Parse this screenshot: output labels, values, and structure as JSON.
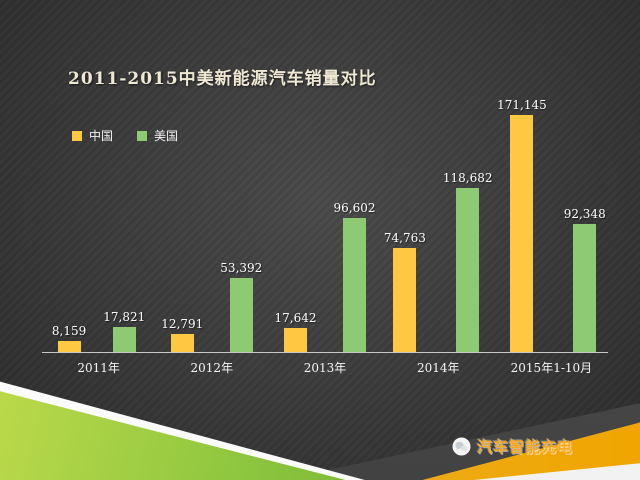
{
  "slide": {
    "title": "2011-2015中美新能源汽车销量对比",
    "watermark": {
      "text": "汽车智能充电",
      "icon": "wechat-icon"
    }
  },
  "chart_data": {
    "type": "bar",
    "title": "2011-2015中美新能源汽车销量对比",
    "categories": [
      "2011年",
      "2012年",
      "2013年",
      "2014年",
      "2015年1-10月"
    ],
    "series": [
      {
        "name": "中国",
        "color": "#FEC843",
        "values": [
          8159,
          12791,
          17642,
          74763,
          171145
        ]
      },
      {
        "name": "美国",
        "color": "#8EC973",
        "values": [
          17821,
          53392,
          96602,
          118682,
          92348
        ]
      }
    ],
    "ylim": [
      0,
      180000
    ],
    "legend_position": "top-left",
    "grid": false,
    "axis_color": "#c8c8c8",
    "label_color": "#ffffff"
  },
  "colors": {
    "background": "#3b3b3b",
    "title_text": "#efe8d4",
    "ribbon_green": "#8DC63F",
    "ribbon_orange": "#F0A500",
    "ribbon_white": "#FBFBFB",
    "watermark_orange": "#F6A821"
  }
}
